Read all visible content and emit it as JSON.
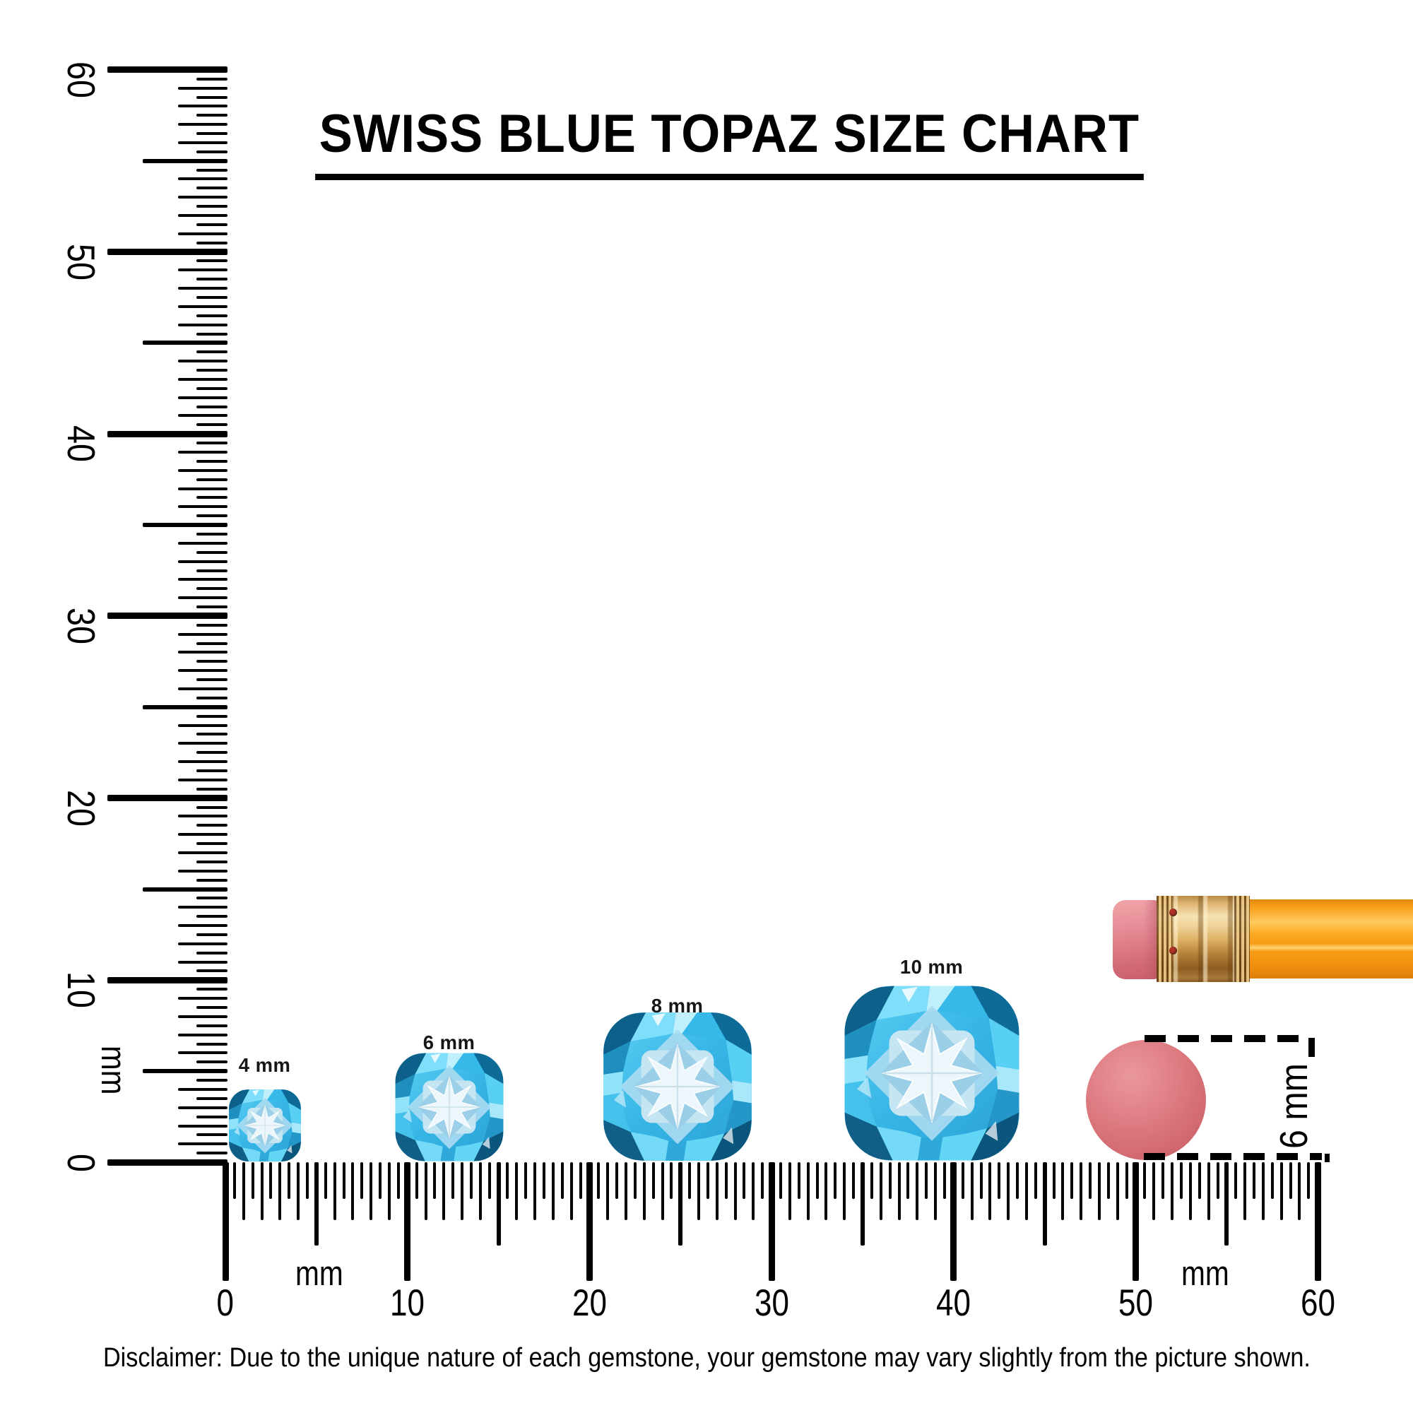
{
  "title": "SWISS BLUE TOPAZ SIZE CHART",
  "disclaimer": "Disclaimer: Due to the unique nature of each gemstone, your gemstone may vary slightly from the picture shown.",
  "gems": [
    {
      "label": "4 mm",
      "size_mm": 4
    },
    {
      "label": "6 mm",
      "size_mm": 6
    },
    {
      "label": "8 mm",
      "size_mm": 8
    },
    {
      "label": "10 mm",
      "size_mm": 10
    }
  ],
  "vertical_ruler": {
    "unit_label": "mm",
    "tick_labels": [
      "0",
      "10",
      "20",
      "30",
      "40",
      "50",
      "60"
    ],
    "min_mm": 0,
    "max_mm": 60,
    "minor_step_mm": 0.5
  },
  "horizontal_ruler": {
    "unit_label_left": "mm",
    "unit_label_right": "mm",
    "tick_labels": [
      "0",
      "10",
      "20",
      "30",
      "40",
      "50",
      "60"
    ],
    "min_mm": 0,
    "max_mm": 60,
    "minor_step_mm": 0.5
  },
  "eraser_comparison": {
    "annotation_label": "6 mm",
    "diameter_mm": 6
  },
  "colors": {
    "ink": "#000000",
    "gem_primary": "#3bbde9",
    "gem_bright": "#7fdefa",
    "gem_dark": "#0c6089",
    "gem_table": "#c6e5f3",
    "gem_star": "#edf7fb",
    "pencil_body": "#f89c17",
    "pencil_ferrule": "#dcae61",
    "pencil_eraser": "#de7d88",
    "eraser_disc": "#d66f76"
  },
  "chart_data": {
    "type": "size-comparison",
    "title": "SWISS BLUE TOPAZ SIZE CHART",
    "items": [
      {
        "label": "4 mm",
        "size_mm": 4
      },
      {
        "label": "6 mm",
        "size_mm": 6
      },
      {
        "label": "8 mm",
        "size_mm": 8
      },
      {
        "label": "10 mm",
        "size_mm": 10
      },
      {
        "label": "round eraser",
        "size_mm": 6
      }
    ],
    "x_axis": {
      "unit": "mm",
      "range": [
        0,
        60
      ]
    },
    "y_axis": {
      "unit": "mm",
      "range": [
        0,
        60
      ]
    }
  }
}
